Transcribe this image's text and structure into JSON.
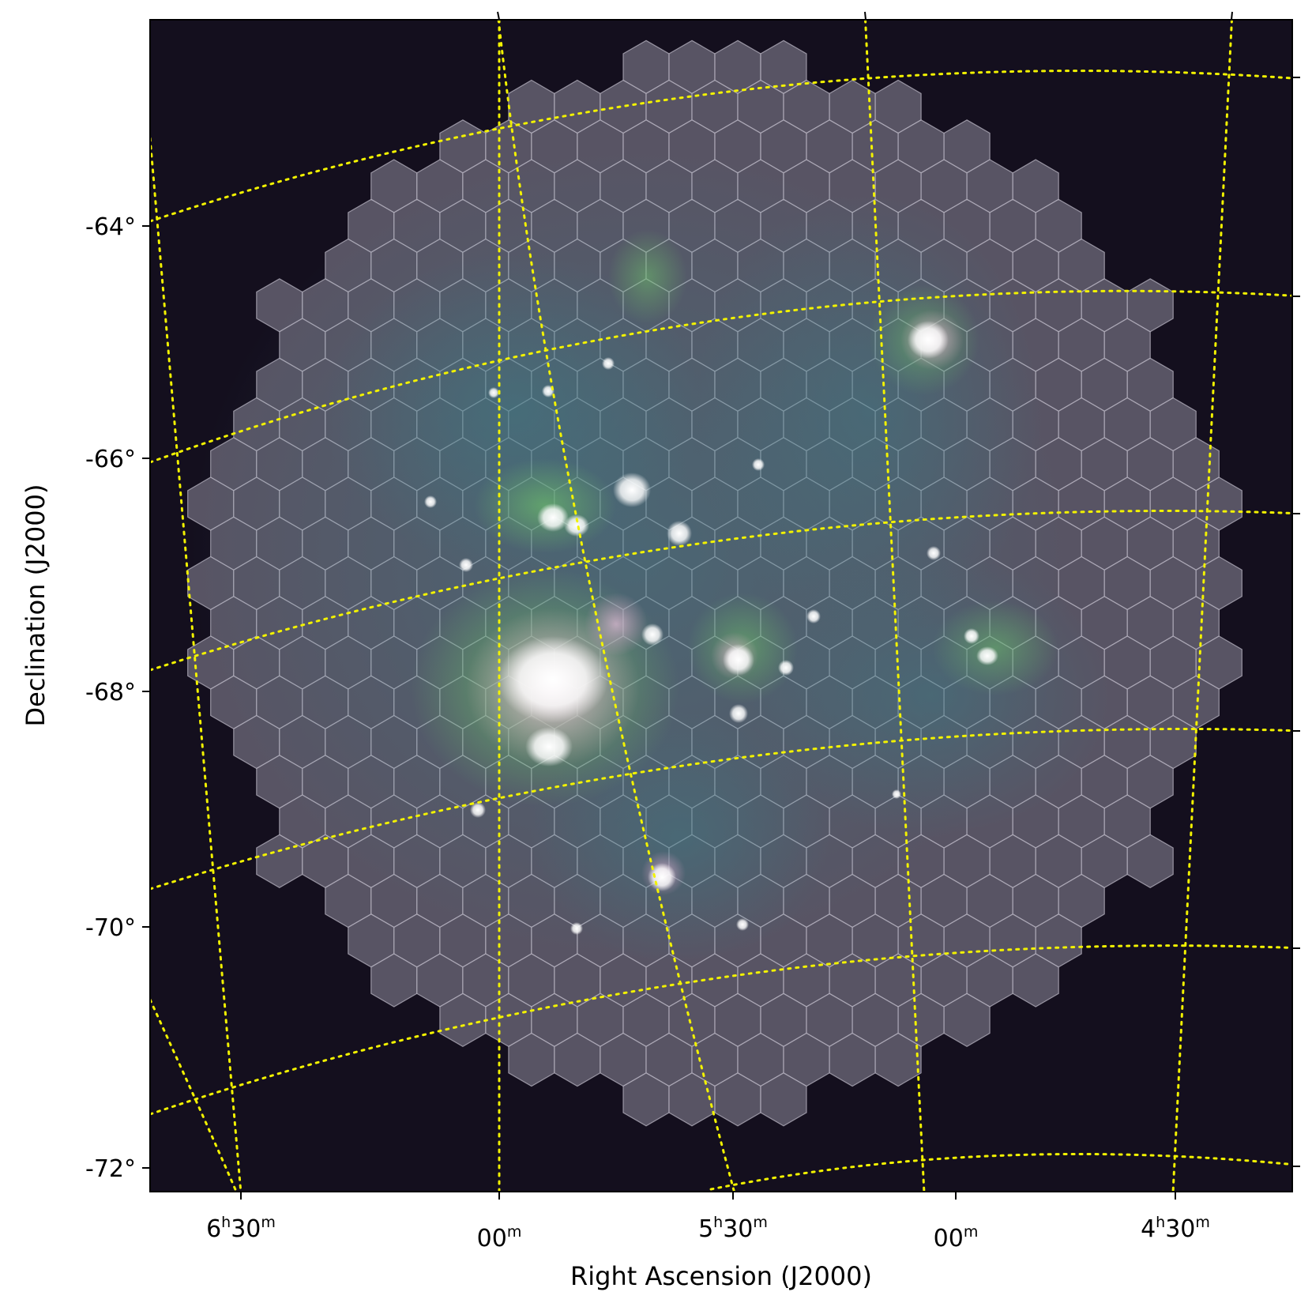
{
  "figure": {
    "xlabel": "Right Ascension (J2000)",
    "ylabel": "Declination (J2000)",
    "colors": {
      "background_sky": "#140f1e",
      "footprint_fill": "#6b6878",
      "hex_outline": "#b8b4c2",
      "graticule": "#f2f200",
      "emission_green": "#6fc46a",
      "emission_teal": "#3b7c86",
      "emission_pink": "#e8a6cf",
      "emission_white": "#ffffff"
    }
  },
  "dec_ticks": [
    {
      "label": "-64°",
      "value": -64
    },
    {
      "label": "-66°",
      "value": -66
    },
    {
      "label": "-68°",
      "value": -68
    },
    {
      "label": "-70°",
      "value": -70
    },
    {
      "label": "-72°",
      "value": -72
    }
  ],
  "ra_ticks": [
    {
      "hours": "6",
      "h": "h",
      "minutes": "30",
      "m": "m",
      "value": "6h30m"
    },
    {
      "hours": "",
      "h": "",
      "minutes": "00",
      "m": "m",
      "value": "6h00m"
    },
    {
      "hours": "5",
      "h": "h",
      "minutes": "30",
      "m": "m",
      "value": "5h30m"
    },
    {
      "hours": "",
      "h": "",
      "minutes": "00",
      "m": "m",
      "value": "5h00m"
    },
    {
      "hours": "4",
      "h": "h",
      "minutes": "30",
      "m": "m",
      "value": "4h30m"
    }
  ],
  "graticule": {
    "style": "dotted",
    "dec_lines": 6,
    "ra_lines": 5
  },
  "footprint": {
    "shape": "hexagonal tiling",
    "approx_diameter_deg": 10
  }
}
